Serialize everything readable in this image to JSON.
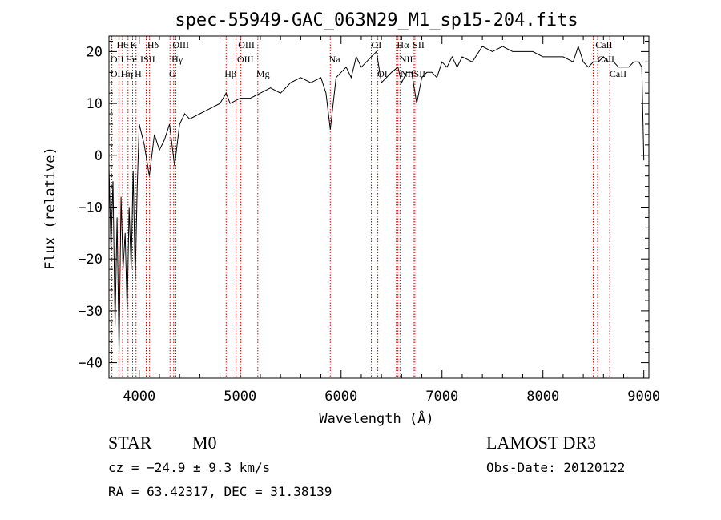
{
  "chart_data": {
    "type": "line",
    "title": "spec-55949-GAC_063N29_M1_sp15-204.fits",
    "xlabel": "Wavelength (Å)",
    "ylabel": "Flux (relative)",
    "xlim": [
      3700,
      9050
    ],
    "ylim": [
      -43,
      23
    ],
    "xticks": [
      4000,
      5000,
      6000,
      7000,
      8000,
      9000
    ],
    "yticks": [
      -40,
      -30,
      -20,
      -10,
      0,
      10,
      20
    ],
    "series": [
      {
        "name": "flux",
        "x": [
          3700,
          3720,
          3740,
          3760,
          3780,
          3800,
          3820,
          3840,
          3860,
          3880,
          3900,
          3920,
          3940,
          3960,
          3980,
          4000,
          4050,
          4100,
          4150,
          4200,
          4250,
          4300,
          4350,
          4400,
          4450,
          4500,
          4600,
          4700,
          4800,
          4861,
          4900,
          5000,
          5100,
          5200,
          5300,
          5400,
          5500,
          5600,
          5700,
          5800,
          5850,
          5893,
          5950,
          6000,
          6050,
          6100,
          6150,
          6200,
          6250,
          6300,
          6350,
          6400,
          6450,
          6500,
          6563,
          6600,
          6650,
          6700,
          6750,
          6800,
          6850,
          6900,
          6950,
          7000,
          7050,
          7100,
          7150,
          7200,
          7300,
          7400,
          7500,
          7600,
          7700,
          7800,
          7900,
          8000,
          8100,
          8200,
          8300,
          8350,
          8400,
          8450,
          8500,
          8550,
          8600,
          8650,
          8700,
          8750,
          8800,
          8850,
          8900,
          8950,
          8980,
          9000
        ],
        "y": [
          -2,
          -18,
          -5,
          -33,
          -12,
          -38,
          -8,
          -22,
          -15,
          -30,
          -10,
          -22,
          -3,
          -24,
          -6,
          6,
          2,
          -4,
          4,
          1,
          3,
          6,
          -2,
          6,
          8,
          7,
          8,
          9,
          10,
          12,
          10,
          11,
          11,
          12,
          13,
          12,
          14,
          15,
          14,
          15,
          12,
          5,
          15,
          16,
          17,
          15,
          19,
          17,
          18,
          19,
          20,
          14,
          15,
          16,
          17,
          14,
          16,
          16,
          10,
          15,
          16,
          16,
          15,
          18,
          17,
          19,
          17,
          19,
          18,
          21,
          20,
          21,
          20,
          20,
          20,
          19,
          19,
          19,
          18,
          21,
          18,
          17,
          18,
          18,
          19,
          18,
          18,
          17,
          17,
          17,
          18,
          18,
          17,
          -1
        ]
      }
    ],
    "lines": [
      {
        "label": "Hδ",
        "wl": 4102
      },
      {
        "label": "OII",
        "wl": 3727
      },
      {
        "label": "OIII",
        "wl": 4363
      },
      {
        "label": "Hγ",
        "wl": 4341
      },
      {
        "label": "G",
        "wl": 4305
      },
      {
        "label": "OIII",
        "wl": 4959
      },
      {
        "label": "OIII",
        "wl": 5007
      },
      {
        "label": "Hβ",
        "wl": 4861
      },
      {
        "label": "Mg",
        "wl": 5175
      },
      {
        "label": "Na",
        "wl": 5893
      },
      {
        "label": "OI",
        "wl": 6300
      },
      {
        "label": "OI",
        "wl": 6364
      },
      {
        "label": "Hα",
        "wl": 6563
      },
      {
        "label": "NII",
        "wl": 6548
      },
      {
        "label": "NII",
        "wl": 6584
      },
      {
        "label": "SII",
        "wl": 6717
      },
      {
        "label": "SII",
        "wl": 6731
      },
      {
        "label": "CaII",
        "wl": 8498
      },
      {
        "label": "CaII",
        "wl": 8542
      },
      {
        "label": "CaII",
        "wl": 8662
      },
      {
        "label": "Hθ",
        "wl": 3798
      },
      {
        "label": "K",
        "wl": 3934
      },
      {
        "label": "HeI",
        "wl": 3889
      },
      {
        "label": "SII",
        "wl": 4069
      },
      {
        "label": "OII",
        "wl": 3729
      },
      {
        "label": "Hη",
        "wl": 3835
      },
      {
        "label": "H",
        "wl": 3968
      }
    ],
    "top_labels": [
      {
        "text": "Hθ",
        "wl": 3775,
        "row": 0
      },
      {
        "text": "K",
        "wl": 3910,
        "row": 0
      },
      {
        "text": "Hδ",
        "wl": 4080,
        "row": 0
      },
      {
        "text": "OIII",
        "wl": 4330,
        "row": 0
      },
      {
        "text": "OIII",
        "wl": 4980,
        "row": 0
      },
      {
        "text": "OI",
        "wl": 6300,
        "row": 0
      },
      {
        "text": "Hα",
        "wl": 6553,
        "row": 0
      },
      {
        "text": "SII",
        "wl": 6710,
        "row": 0
      },
      {
        "text": "CaII",
        "wl": 8520,
        "row": 0
      },
      {
        "text": "OII",
        "wl": 3715,
        "row": 1
      },
      {
        "text": "He",
        "wl": 3865,
        "row": 1
      },
      {
        "text": "ISII",
        "wl": 4010,
        "row": 1
      },
      {
        "text": "Hγ",
        "wl": 4320,
        "row": 1
      },
      {
        "text": "OIII",
        "wl": 4970,
        "row": 1
      },
      {
        "text": "Na",
        "wl": 5880,
        "row": 1
      },
      {
        "text": "NII",
        "wl": 6580,
        "row": 1
      },
      {
        "text": "CaII",
        "wl": 8540,
        "row": 1
      },
      {
        "text": "OII",
        "wl": 3715,
        "row": 2
      },
      {
        "text": "Hη",
        "wl": 3820,
        "row": 2
      },
      {
        "text": "H",
        "wl": 3955,
        "row": 2
      },
      {
        "text": "G",
        "wl": 4295,
        "row": 2
      },
      {
        "text": "Hβ",
        "wl": 4845,
        "row": 2
      },
      {
        "text": "Mg",
        "wl": 5160,
        "row": 2
      },
      {
        "text": "OI",
        "wl": 6360,
        "row": 2
      },
      {
        "text": "NII",
        "wl": 6590,
        "row": 2
      },
      {
        "text": "SII",
        "wl": 6720,
        "row": 2
      },
      {
        "text": "CaII",
        "wl": 8660,
        "row": 2
      }
    ]
  },
  "info": {
    "object_type": "STAR",
    "subclass": "M0",
    "survey": "LAMOST DR3",
    "cz": "cz = −24.9 ± 9.3 km/s",
    "obs_date": "Obs-Date: 20120122",
    "coords": "RA =  63.42317, DEC =  31.38139"
  }
}
